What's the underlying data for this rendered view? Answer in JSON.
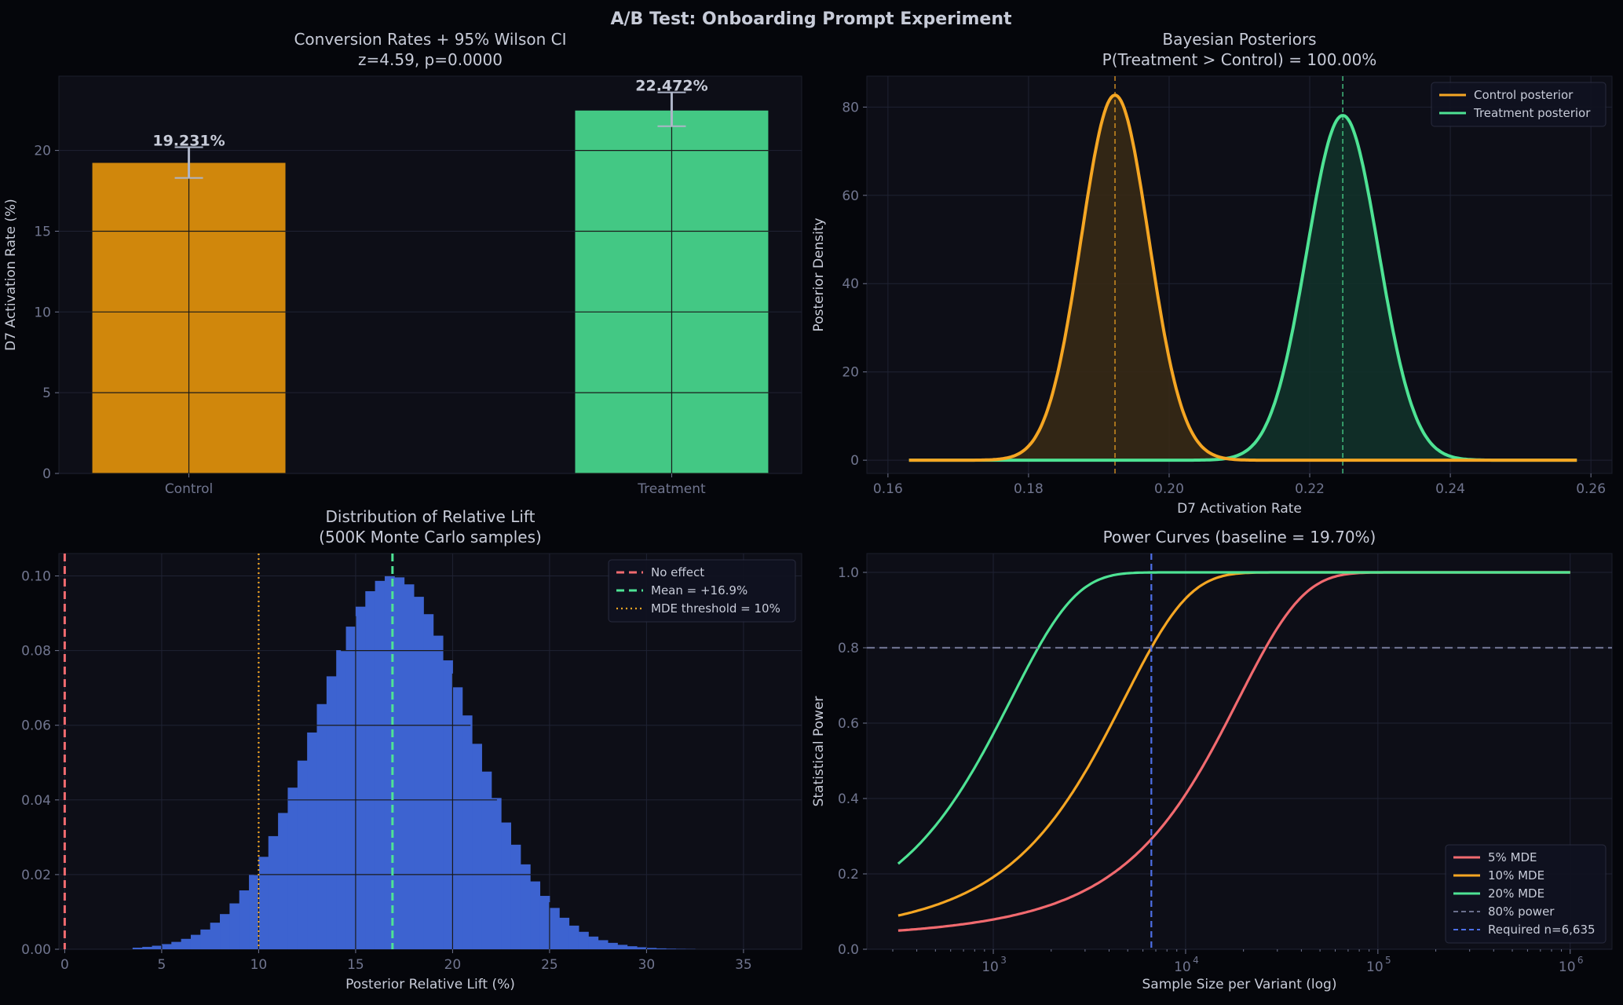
{
  "figure_title": "A/B Test: Onboarding Prompt Experiment",
  "colors": {
    "background": "#05060b",
    "panel": "#0d0e17",
    "grid": "#1f2233",
    "text": "#c7cbd8",
    "tick": "#70758f",
    "control": "#f5a623",
    "control_bar": "#d0870c",
    "treatment": "#4ee394",
    "treatment_bar": "#43c884",
    "hist": "#3d63d0",
    "no_effect": "#f16a6f",
    "power_ref": "#6b6f8d",
    "required": "#4d6fe6",
    "errorbar": "#aeb5c8"
  },
  "chart_data": [
    {
      "id": "conversion",
      "type": "bar",
      "title": "Conversion Rates + 95% Wilson CI",
      "subtitle": "z=4.59, p=0.0000",
      "xlabel": "",
      "ylabel": "D7 Activation Rate (%)",
      "categories": [
        "Control",
        "Treatment"
      ],
      "values": [
        19.231,
        22.472
      ],
      "value_labels": [
        "19.231%",
        "22.472%"
      ],
      "ci_low": [
        18.3,
        21.5
      ],
      "ci_high": [
        20.2,
        23.6
      ],
      "ylim": [
        0,
        24.6
      ],
      "yticks": [
        0,
        5,
        10,
        15,
        20
      ],
      "ytick_labels": [
        "0",
        "5",
        "10",
        "15",
        "20"
      ],
      "grid": true
    },
    {
      "id": "posterior",
      "type": "line",
      "title": "Bayesian Posteriors",
      "subtitle": "P(Treatment > Control) = 100.00%",
      "xlabel": "D7 Activation Rate",
      "ylabel": "Posterior Density",
      "xlim": [
        0.157,
        0.263
      ],
      "ylim": [
        -3,
        87
      ],
      "xticks": [
        0.16,
        0.18,
        0.2,
        0.22,
        0.24,
        0.26
      ],
      "xtick_labels": [
        "0.16",
        "0.18",
        "0.20",
        "0.22",
        "0.24",
        "0.26"
      ],
      "yticks": [
        0,
        20,
        40,
        60,
        80
      ],
      "ytick_labels": [
        "0",
        "20",
        "40",
        "60",
        "80"
      ],
      "x_range": [
        0.163,
        0.258
      ],
      "series": [
        {
          "name": "Control posterior",
          "mean": 0.1923,
          "sd": 0.00482,
          "peak": 82.7
        },
        {
          "name": "Treatment posterior",
          "mean": 0.2247,
          "sd": 0.00511,
          "peak": 78.1
        }
      ],
      "legend": "top-right",
      "grid": true
    },
    {
      "id": "lift",
      "type": "bar",
      "title": "Distribution of Relative Lift",
      "subtitle": "(500K Monte Carlo samples)",
      "xlabel": "Posterior Relative Lift (%)",
      "ylabel": "",
      "xlim": [
        -0.3,
        38
      ],
      "ylim": [
        0,
        0.106
      ],
      "xticks": [
        0,
        5,
        10,
        15,
        20,
        25,
        30,
        35
      ],
      "xtick_labels": [
        "0",
        "5",
        "10",
        "15",
        "20",
        "25",
        "30",
        "35"
      ],
      "yticks": [
        0,
        0.02,
        0.04,
        0.06,
        0.08,
        0.1
      ],
      "ytick_labels": [
        "0.00",
        "0.02",
        "0.04",
        "0.06",
        "0.08",
        "0.10"
      ],
      "bin_range": [
        3.5,
        32.5
      ],
      "bin_width": 0.5,
      "mean": 16.9,
      "sd": 3.98,
      "peak_density": 0.1,
      "lines": [
        {
          "name": "No effect",
          "x": 0,
          "style": "dashed"
        },
        {
          "name": "Mean = +16.9%",
          "x": 16.9,
          "style": "dashed"
        },
        {
          "name": "MDE threshold = 10%",
          "x": 10,
          "style": "dotted"
        }
      ],
      "legend": "top-right",
      "grid": true
    },
    {
      "id": "power",
      "type": "line",
      "title": "Power Curves (baseline = 19.70%)",
      "xlabel": "Sample Size per Variant (log)",
      "ylabel": "Statistical Power",
      "xscale": "log",
      "xlim": [
        220,
        1650000
      ],
      "ylim": [
        0,
        1.05
      ],
      "xticks": [
        1000,
        10000,
        100000,
        1000000
      ],
      "xtick_labels": [
        "10",
        "10",
        "10",
        "10"
      ],
      "xtick_exponents": [
        "3",
        "4",
        "5",
        "6"
      ],
      "yticks": [
        0,
        0.2,
        0.4,
        0.6,
        0.8,
        1.0
      ],
      "ytick_labels": [
        "0.0",
        "0.2",
        "0.4",
        "0.6",
        "0.8",
        "1.0"
      ],
      "x_range": [
        320,
        1000000
      ],
      "baseline": 0.197,
      "alpha_z": 1.96,
      "series": [
        {
          "name": "5% MDE",
          "mde": 0.05
        },
        {
          "name": "10% MDE",
          "mde": 0.1
        },
        {
          "name": "20% MDE",
          "mde": 0.2
        }
      ],
      "reference_lines": [
        {
          "name": "80% power",
          "axis": "y",
          "value": 0.8
        },
        {
          "name": "Required n=6,635",
          "axis": "x",
          "value": 6635
        }
      ],
      "legend": "bottom-right",
      "grid": true
    }
  ]
}
